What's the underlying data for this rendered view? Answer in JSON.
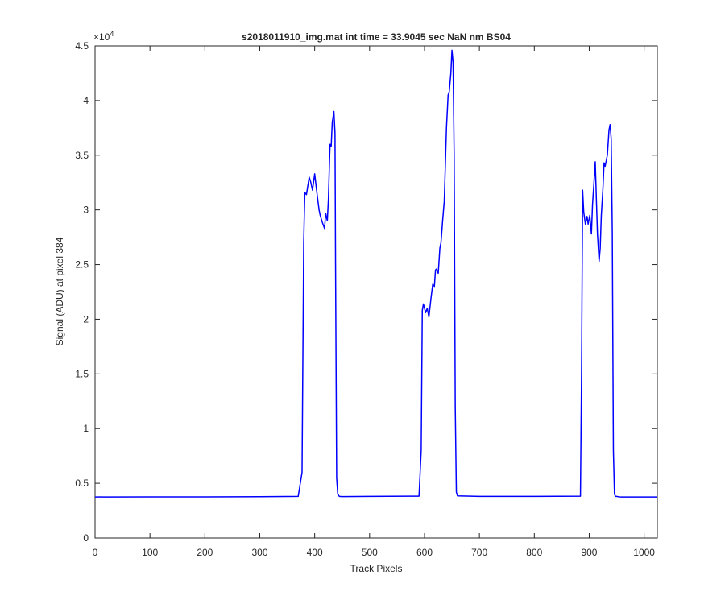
{
  "chart_data": {
    "type": "line",
    "title": "s2018011910_img.mat int time = 33.9045 sec  NaN nm BS04",
    "xlabel": "Track Pixels",
    "ylabel": "Signal (ADU) at pixel 384",
    "xlim": [
      0,
      1024
    ],
    "ylim": [
      0,
      45000
    ],
    "y_exponent_label": "×10",
    "y_exponent_power": "4",
    "grid": false,
    "legend": "none",
    "line_color": "#0000ff",
    "xticks": [
      0,
      100,
      200,
      300,
      400,
      500,
      600,
      700,
      800,
      900,
      1000
    ],
    "xtick_labels": [
      "0",
      "100",
      "200",
      "300",
      "400",
      "500",
      "600",
      "700",
      "800",
      "900",
      "1000"
    ],
    "yticks": [
      0,
      5000,
      10000,
      15000,
      20000,
      25000,
      30000,
      35000,
      40000,
      45000
    ],
    "ytick_labels": [
      "0",
      "0.5",
      "1",
      "1.5",
      "2",
      "2.5",
      "3",
      "3.5",
      "4",
      "4.5"
    ],
    "series": [
      {
        "x": [
          0,
          100,
          200,
          300,
          370,
          377,
          380,
          382,
          385,
          390,
          393,
          396,
          400,
          403,
          405,
          408,
          410,
          415,
          418,
          420,
          423,
          425,
          427,
          428,
          430,
          432,
          435,
          437,
          438,
          440,
          442,
          445,
          450,
          500,
          590,
          594,
          596,
          598,
          602,
          605,
          608,
          612,
          615,
          618,
          620,
          622,
          625,
          628,
          630,
          633,
          636,
          640,
          643,
          645,
          648,
          650,
          652,
          654,
          656,
          658,
          660,
          700,
          800,
          884,
          886,
          888,
          890,
          893,
          896,
          898,
          901,
          904,
          906,
          909,
          911,
          913,
          915,
          918,
          920,
          922,
          925,
          927,
          929,
          931,
          933,
          936,
          938,
          940,
          942,
          944,
          946,
          948,
          950,
          952,
          955,
          960,
          1024
        ],
        "y": [
          3750,
          3760,
          3760,
          3770,
          3800,
          6000,
          27000,
          31600,
          31400,
          33000,
          32500,
          31800,
          33300,
          32000,
          31200,
          30000,
          29500,
          28700,
          28300,
          29700,
          29000,
          31000,
          34500,
          36000,
          35800,
          38000,
          39000,
          37000,
          25000,
          5500,
          4000,
          3800,
          3780,
          3800,
          3820,
          8000,
          20800,
          21400,
          20600,
          21000,
          20200,
          22000,
          23200,
          23000,
          24500,
          24600,
          24200,
          26500,
          27000,
          29000,
          30800,
          37500,
          40500,
          40800,
          42500,
          44600,
          43500,
          35000,
          12000,
          4200,
          3850,
          3800,
          3800,
          3820,
          15000,
          31800,
          29800,
          28700,
          29400,
          28700,
          29500,
          27800,
          30500,
          32800,
          34400,
          31000,
          27800,
          25300,
          26500,
          29500,
          32000,
          34300,
          34000,
          34500,
          35000,
          37300,
          37800,
          36500,
          28000,
          8000,
          4000,
          3800,
          3800,
          3780,
          3760,
          3750,
          3750
        ]
      }
    ]
  }
}
